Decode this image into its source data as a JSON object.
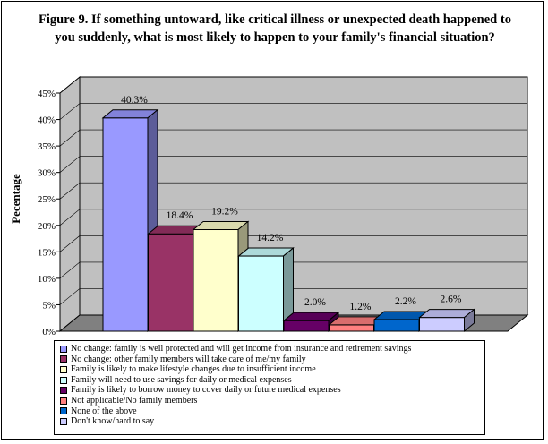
{
  "chart_data": {
    "type": "bar",
    "title": "Figure 9. If something untoward, like critical illness or unexpected death happened to you suddenly, what is most likely to happen to your family's financial situation?",
    "ylabel": "Pecentage",
    "xlabel": "",
    "ylim": [
      0,
      45
    ],
    "yticks": [
      "0%",
      "5%",
      "10%",
      "15%",
      "20%",
      "25%",
      "30%",
      "35%",
      "40%",
      "45%"
    ],
    "grid": true,
    "legend_position": "bottom",
    "categories": [
      "No change: family is well protected and will get income from insurance and retirement savings",
      "No change: other family members will take care of me/my family",
      "Family is likely to make lifestyle changes due to insufficient income",
      "Family will need to use savings for daily or medical expenses",
      "Family is likely to borrow money to cover daily or future medical expenses",
      "Not applicable/No family members",
      "None of the above",
      "Don't know/hard to say"
    ],
    "values": [
      40.3,
      18.4,
      19.2,
      14.2,
      2.0,
      1.2,
      2.2,
      2.6
    ],
    "data_labels": [
      "40.3%",
      "18.4%",
      "19.2%",
      "14.2%",
      "2.0%",
      "1.2%",
      "2.2%",
      "2.6%"
    ],
    "colors": [
      "#9999ff",
      "#993366",
      "#ffffcc",
      "#ccffff",
      "#660066",
      "#ff8080",
      "#0066cc",
      "#ccccff"
    ]
  },
  "colors": {
    "wall": "#c0c0c0",
    "floor": "#808080",
    "gridline": "#000000"
  }
}
